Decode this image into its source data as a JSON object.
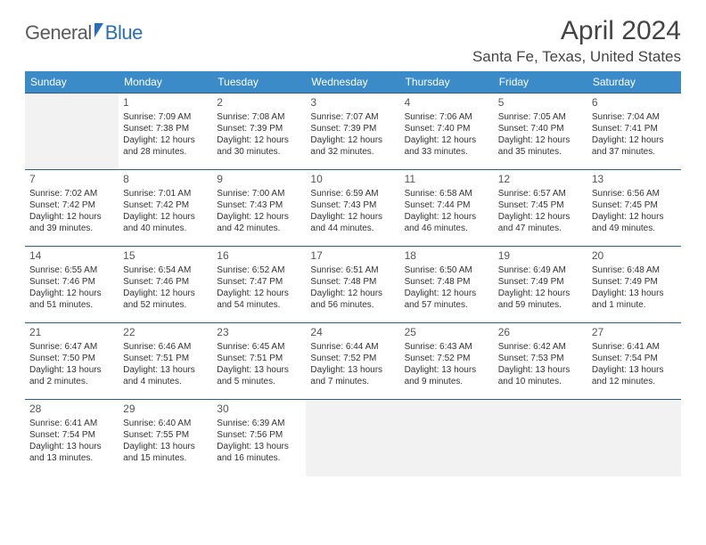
{
  "logo": {
    "text1": "General",
    "text2": "Blue"
  },
  "title": "April 2024",
  "location": "Santa Fe, Texas, United States",
  "weekday_bg": "#3b8bc9",
  "weekdays": [
    "Sunday",
    "Monday",
    "Tuesday",
    "Wednesday",
    "Thursday",
    "Friday",
    "Saturday"
  ],
  "weeks": [
    [
      null,
      {
        "d": "1",
        "sr": "Sunrise: 7:09 AM",
        "ss": "Sunset: 7:38 PM",
        "dl1": "Daylight: 12 hours",
        "dl2": "and 28 minutes."
      },
      {
        "d": "2",
        "sr": "Sunrise: 7:08 AM",
        "ss": "Sunset: 7:39 PM",
        "dl1": "Daylight: 12 hours",
        "dl2": "and 30 minutes."
      },
      {
        "d": "3",
        "sr": "Sunrise: 7:07 AM",
        "ss": "Sunset: 7:39 PM",
        "dl1": "Daylight: 12 hours",
        "dl2": "and 32 minutes."
      },
      {
        "d": "4",
        "sr": "Sunrise: 7:06 AM",
        "ss": "Sunset: 7:40 PM",
        "dl1": "Daylight: 12 hours",
        "dl2": "and 33 minutes."
      },
      {
        "d": "5",
        "sr": "Sunrise: 7:05 AM",
        "ss": "Sunset: 7:40 PM",
        "dl1": "Daylight: 12 hours",
        "dl2": "and 35 minutes."
      },
      {
        "d": "6",
        "sr": "Sunrise: 7:04 AM",
        "ss": "Sunset: 7:41 PM",
        "dl1": "Daylight: 12 hours",
        "dl2": "and 37 minutes."
      }
    ],
    [
      {
        "d": "7",
        "sr": "Sunrise: 7:02 AM",
        "ss": "Sunset: 7:42 PM",
        "dl1": "Daylight: 12 hours",
        "dl2": "and 39 minutes."
      },
      {
        "d": "8",
        "sr": "Sunrise: 7:01 AM",
        "ss": "Sunset: 7:42 PM",
        "dl1": "Daylight: 12 hours",
        "dl2": "and 40 minutes."
      },
      {
        "d": "9",
        "sr": "Sunrise: 7:00 AM",
        "ss": "Sunset: 7:43 PM",
        "dl1": "Daylight: 12 hours",
        "dl2": "and 42 minutes."
      },
      {
        "d": "10",
        "sr": "Sunrise: 6:59 AM",
        "ss": "Sunset: 7:43 PM",
        "dl1": "Daylight: 12 hours",
        "dl2": "and 44 minutes."
      },
      {
        "d": "11",
        "sr": "Sunrise: 6:58 AM",
        "ss": "Sunset: 7:44 PM",
        "dl1": "Daylight: 12 hours",
        "dl2": "and 46 minutes."
      },
      {
        "d": "12",
        "sr": "Sunrise: 6:57 AM",
        "ss": "Sunset: 7:45 PM",
        "dl1": "Daylight: 12 hours",
        "dl2": "and 47 minutes."
      },
      {
        "d": "13",
        "sr": "Sunrise: 6:56 AM",
        "ss": "Sunset: 7:45 PM",
        "dl1": "Daylight: 12 hours",
        "dl2": "and 49 minutes."
      }
    ],
    [
      {
        "d": "14",
        "sr": "Sunrise: 6:55 AM",
        "ss": "Sunset: 7:46 PM",
        "dl1": "Daylight: 12 hours",
        "dl2": "and 51 minutes."
      },
      {
        "d": "15",
        "sr": "Sunrise: 6:54 AM",
        "ss": "Sunset: 7:46 PM",
        "dl1": "Daylight: 12 hours",
        "dl2": "and 52 minutes."
      },
      {
        "d": "16",
        "sr": "Sunrise: 6:52 AM",
        "ss": "Sunset: 7:47 PM",
        "dl1": "Daylight: 12 hours",
        "dl2": "and 54 minutes."
      },
      {
        "d": "17",
        "sr": "Sunrise: 6:51 AM",
        "ss": "Sunset: 7:48 PM",
        "dl1": "Daylight: 12 hours",
        "dl2": "and 56 minutes."
      },
      {
        "d": "18",
        "sr": "Sunrise: 6:50 AM",
        "ss": "Sunset: 7:48 PM",
        "dl1": "Daylight: 12 hours",
        "dl2": "and 57 minutes."
      },
      {
        "d": "19",
        "sr": "Sunrise: 6:49 AM",
        "ss": "Sunset: 7:49 PM",
        "dl1": "Daylight: 12 hours",
        "dl2": "and 59 minutes."
      },
      {
        "d": "20",
        "sr": "Sunrise: 6:48 AM",
        "ss": "Sunset: 7:49 PM",
        "dl1": "Daylight: 13 hours",
        "dl2": "and 1 minute."
      }
    ],
    [
      {
        "d": "21",
        "sr": "Sunrise: 6:47 AM",
        "ss": "Sunset: 7:50 PM",
        "dl1": "Daylight: 13 hours",
        "dl2": "and 2 minutes."
      },
      {
        "d": "22",
        "sr": "Sunrise: 6:46 AM",
        "ss": "Sunset: 7:51 PM",
        "dl1": "Daylight: 13 hours",
        "dl2": "and 4 minutes."
      },
      {
        "d": "23",
        "sr": "Sunrise: 6:45 AM",
        "ss": "Sunset: 7:51 PM",
        "dl1": "Daylight: 13 hours",
        "dl2": "and 5 minutes."
      },
      {
        "d": "24",
        "sr": "Sunrise: 6:44 AM",
        "ss": "Sunset: 7:52 PM",
        "dl1": "Daylight: 13 hours",
        "dl2": "and 7 minutes."
      },
      {
        "d": "25",
        "sr": "Sunrise: 6:43 AM",
        "ss": "Sunset: 7:52 PM",
        "dl1": "Daylight: 13 hours",
        "dl2": "and 9 minutes."
      },
      {
        "d": "26",
        "sr": "Sunrise: 6:42 AM",
        "ss": "Sunset: 7:53 PM",
        "dl1": "Daylight: 13 hours",
        "dl2": "and 10 minutes."
      },
      {
        "d": "27",
        "sr": "Sunrise: 6:41 AM",
        "ss": "Sunset: 7:54 PM",
        "dl1": "Daylight: 13 hours",
        "dl2": "and 12 minutes."
      }
    ],
    [
      {
        "d": "28",
        "sr": "Sunrise: 6:41 AM",
        "ss": "Sunset: 7:54 PM",
        "dl1": "Daylight: 13 hours",
        "dl2": "and 13 minutes."
      },
      {
        "d": "29",
        "sr": "Sunrise: 6:40 AM",
        "ss": "Sunset: 7:55 PM",
        "dl1": "Daylight: 13 hours",
        "dl2": "and 15 minutes."
      },
      {
        "d": "30",
        "sr": "Sunrise: 6:39 AM",
        "ss": "Sunset: 7:56 PM",
        "dl1": "Daylight: 13 hours",
        "dl2": "and 16 minutes."
      },
      null,
      null,
      null,
      null
    ]
  ]
}
